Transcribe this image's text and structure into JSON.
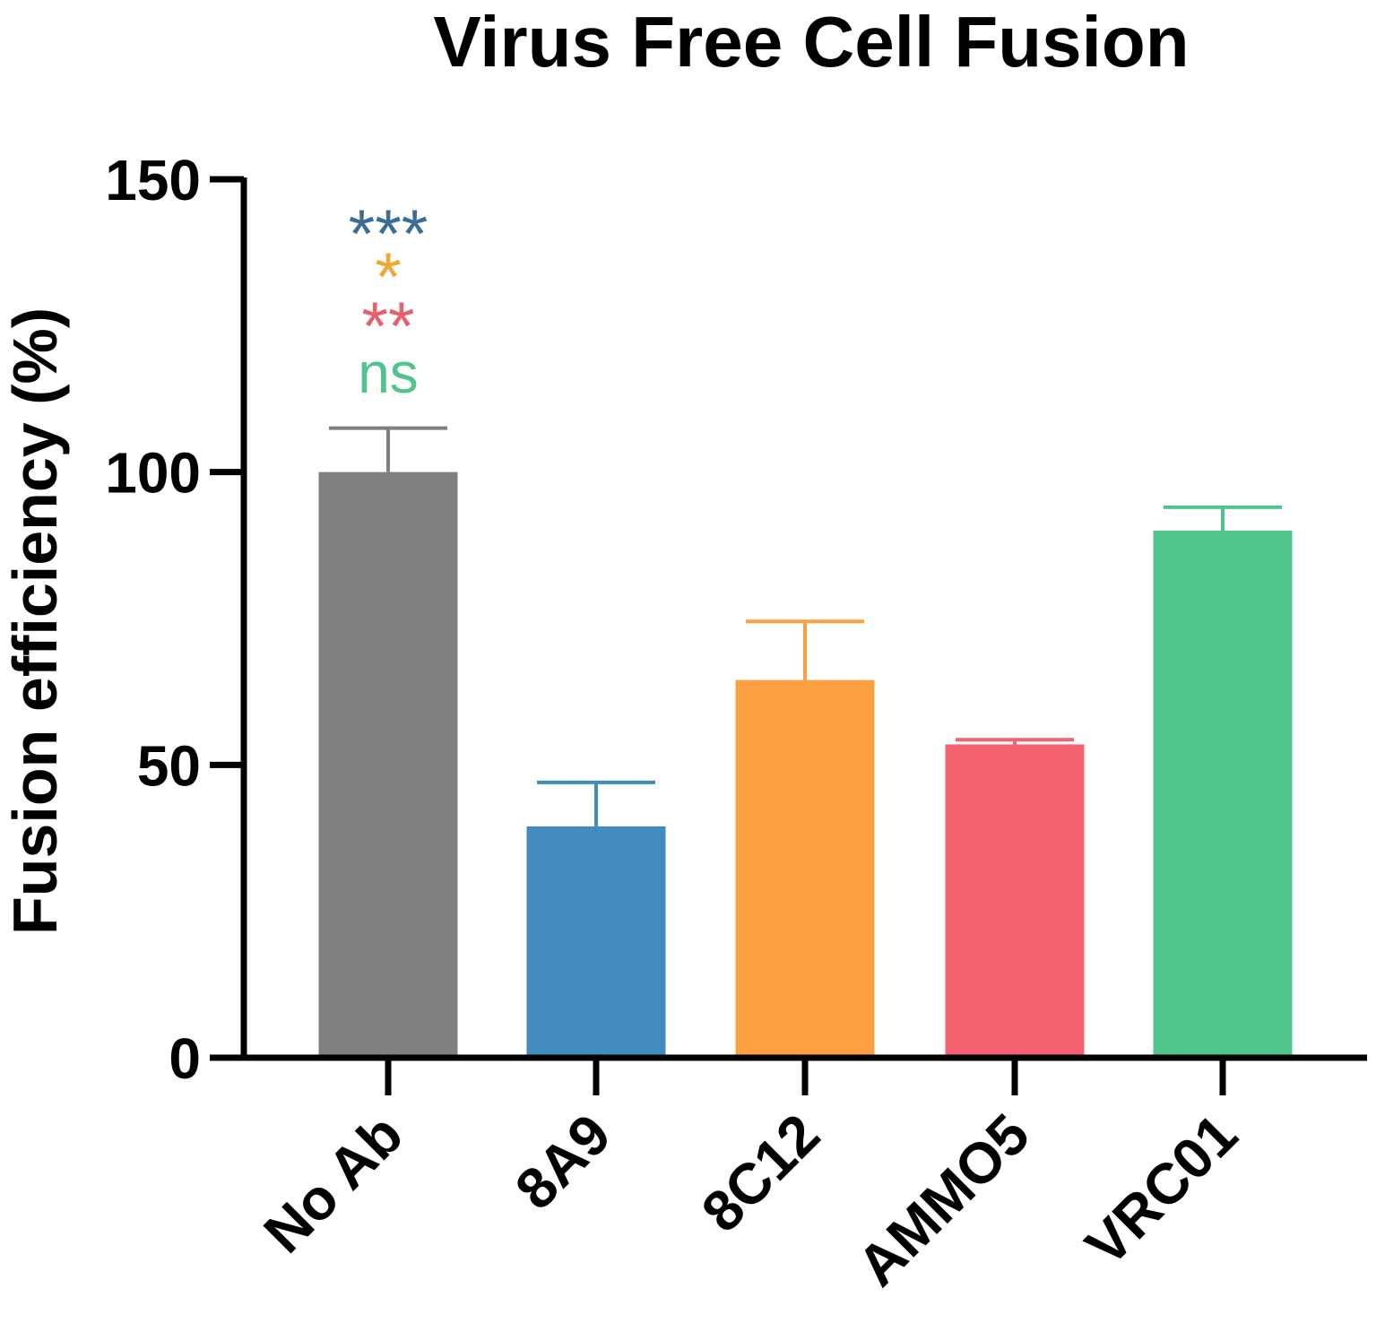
{
  "chart_data": {
    "type": "bar",
    "title": "Virus Free Cell Fusion",
    "xlabel": "",
    "ylabel": "Fusion efficiency (%)",
    "ylim": [
      0,
      150
    ],
    "yticks": [
      "0",
      "50",
      "100",
      "150"
    ],
    "grid": false,
    "categories": [
      "No Ab",
      "8A9",
      "8C12",
      "AMMO5",
      "VRC01"
    ],
    "values": [
      100,
      39.5,
      64.5,
      53.5,
      90
    ],
    "error_upper": [
      107.5,
      47,
      74.5,
      54.3,
      94
    ],
    "colors": [
      "#7f7f7f",
      "#428bbe",
      "#fba142",
      "#f46170",
      "#50c48c"
    ],
    "annotations": [
      {
        "text": "***",
        "color": "#3a6e94"
      },
      {
        "text": "*",
        "color": "#f1a832"
      },
      {
        "text": "**",
        "color": "#e8606c"
      },
      {
        "text": "ns",
        "color": "#50c48c"
      }
    ]
  }
}
